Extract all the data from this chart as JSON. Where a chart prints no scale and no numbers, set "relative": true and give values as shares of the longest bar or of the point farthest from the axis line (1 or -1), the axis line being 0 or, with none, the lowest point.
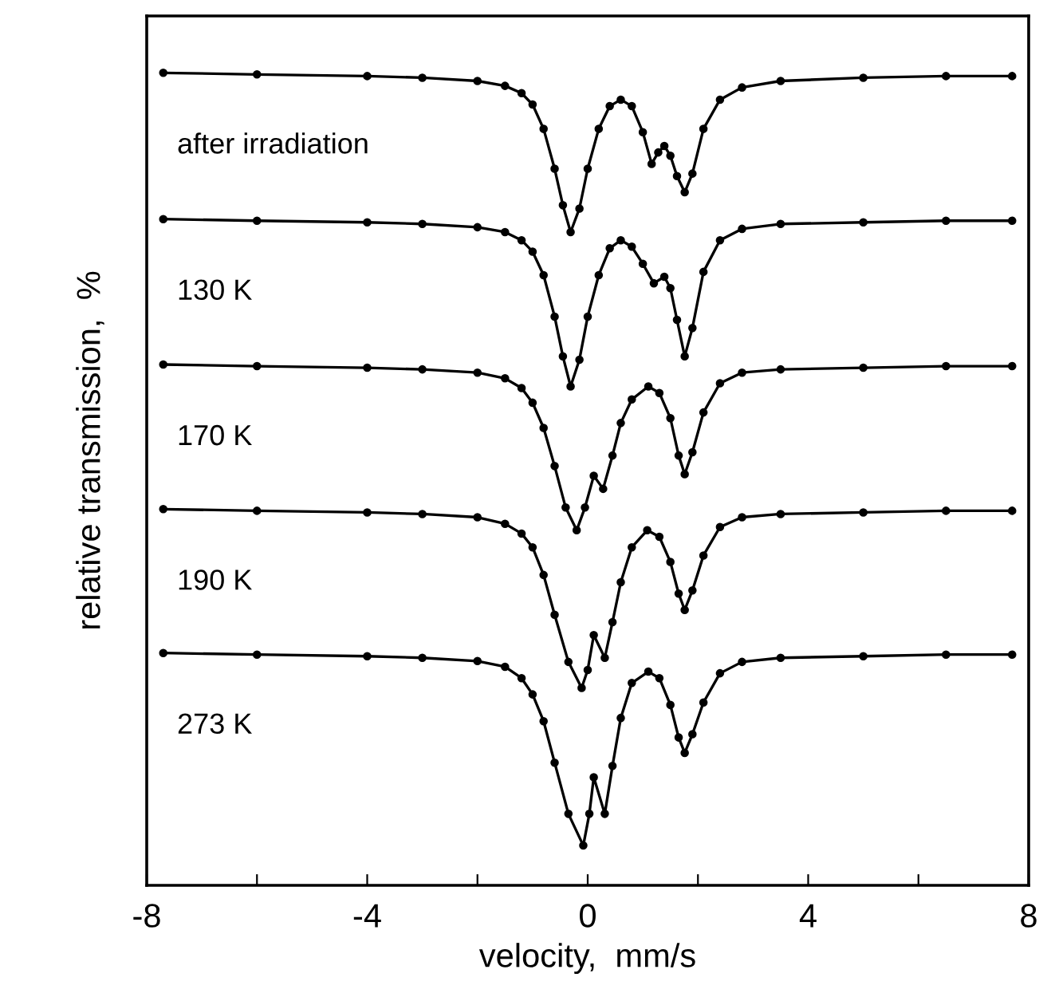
{
  "chart_data": {
    "type": "line",
    "relative": true,
    "xlabel": "velocity,  mm/s",
    "ylabel": "relative transmission,  %",
    "xlim": [
      -8,
      8
    ],
    "xticks": [
      -8,
      {
        "value": -6,
        "label": null
      },
      -4,
      {
        "value": -2,
        "label": null
      },
      0,
      {
        "value": 2,
        "label": null
      },
      4,
      {
        "value": 6,
        "label": null
      },
      8
    ],
    "marker": "circle",
    "line_style": "solid",
    "grid": false,
    "legend": false,
    "tick_labels": "x",
    "series": [
      {
        "name": "after irradiation",
        "color": "#000000",
        "x": [
          -7.7,
          -6,
          -4,
          -3,
          -2,
          -1.5,
          -1.2,
          -1.0,
          -0.8,
          -0.6,
          -0.45,
          -0.31,
          -0.15,
          0,
          0.2,
          0.4,
          0.6,
          0.8,
          1.0,
          1.16,
          1.28,
          1.39,
          1.5,
          1.62,
          1.76,
          1.9,
          2.1,
          2.4,
          2.8,
          3.5,
          5,
          6.5,
          7.7
        ],
        "values": [
          1.0,
          0.998,
          0.996,
          0.994,
          0.99,
          0.984,
          0.975,
          0.961,
          0.931,
          0.882,
          0.837,
          0.804,
          0.833,
          0.882,
          0.931,
          0.959,
          0.967,
          0.959,
          0.927,
          0.888,
          0.902,
          0.91,
          0.898,
          0.873,
          0.853,
          0.876,
          0.931,
          0.967,
          0.982,
          0.99,
          0.994,
          0.996,
          0.996
        ]
      },
      {
        "name": "130 K",
        "color": "#000000",
        "x": [
          -7.7,
          -6,
          -4,
          -3,
          -2,
          -1.5,
          -1.2,
          -1.0,
          -0.8,
          -0.6,
          -0.45,
          -0.31,
          -0.15,
          0,
          0.2,
          0.4,
          0.6,
          0.8,
          1.0,
          1.2,
          1.39,
          1.5,
          1.62,
          1.76,
          1.9,
          2.1,
          2.4,
          2.8,
          3.5,
          5,
          6.5,
          7.7
        ],
        "values": [
          0.82,
          0.818,
          0.816,
          0.814,
          0.81,
          0.804,
          0.794,
          0.78,
          0.751,
          0.7,
          0.651,
          0.614,
          0.647,
          0.7,
          0.751,
          0.784,
          0.794,
          0.786,
          0.765,
          0.741,
          0.749,
          0.735,
          0.696,
          0.651,
          0.686,
          0.755,
          0.794,
          0.808,
          0.814,
          0.816,
          0.818,
          0.818
        ]
      },
      {
        "name": "170 K",
        "color": "#000000",
        "x": [
          -7.7,
          -6,
          -4,
          -3,
          -2,
          -1.5,
          -1.2,
          -1.0,
          -0.8,
          -0.6,
          -0.4,
          -0.2,
          -0.05,
          0.11,
          0.28,
          0.45,
          0.6,
          0.8,
          1.1,
          1.3,
          1.5,
          1.65,
          1.76,
          1.9,
          2.1,
          2.4,
          2.8,
          3.5,
          5,
          6.5,
          7.7
        ],
        "values": [
          0.641,
          0.639,
          0.637,
          0.635,
          0.631,
          0.624,
          0.612,
          0.594,
          0.563,
          0.516,
          0.465,
          0.437,
          0.465,
          0.504,
          0.488,
          0.529,
          0.569,
          0.598,
          0.614,
          0.606,
          0.575,
          0.529,
          0.506,
          0.533,
          0.582,
          0.618,
          0.631,
          0.635,
          0.637,
          0.639,
          0.639
        ]
      },
      {
        "name": "190 K",
        "color": "#000000",
        "x": [
          -7.7,
          -6,
          -4,
          -3,
          -2,
          -1.5,
          -1.2,
          -1.0,
          -0.8,
          -0.6,
          -0.35,
          -0.11,
          0.0,
          0.11,
          0.31,
          0.45,
          0.6,
          0.8,
          1.08,
          1.3,
          1.5,
          1.65,
          1.76,
          1.9,
          2.1,
          2.4,
          2.8,
          3.5,
          5,
          6.5,
          7.7
        ],
        "values": [
          0.463,
          0.461,
          0.459,
          0.457,
          0.453,
          0.445,
          0.433,
          0.416,
          0.382,
          0.333,
          0.275,
          0.243,
          0.265,
          0.308,
          0.28,
          0.324,
          0.373,
          0.416,
          0.437,
          0.429,
          0.398,
          0.359,
          0.339,
          0.363,
          0.406,
          0.441,
          0.453,
          0.457,
          0.459,
          0.461,
          0.461
        ]
      },
      {
        "name": "273 K",
        "color": "#000000",
        "x": [
          -7.7,
          -6,
          -4,
          -3,
          -2,
          -1.5,
          -1.2,
          -1.0,
          -0.8,
          -0.6,
          -0.35,
          -0.08,
          0.03,
          0.11,
          0.31,
          0.45,
          0.6,
          0.8,
          1.1,
          1.3,
          1.5,
          1.65,
          1.76,
          1.9,
          2.1,
          2.4,
          2.8,
          3.5,
          5,
          6.5,
          7.7
        ],
        "values": [
          0.286,
          0.284,
          0.282,
          0.28,
          0.276,
          0.269,
          0.255,
          0.235,
          0.202,
          0.151,
          0.088,
          0.049,
          0.088,
          0.133,
          0.088,
          0.147,
          0.206,
          0.249,
          0.263,
          0.255,
          0.222,
          0.182,
          0.163,
          0.186,
          0.225,
          0.261,
          0.275,
          0.28,
          0.282,
          0.284,
          0.284
        ]
      }
    ]
  }
}
